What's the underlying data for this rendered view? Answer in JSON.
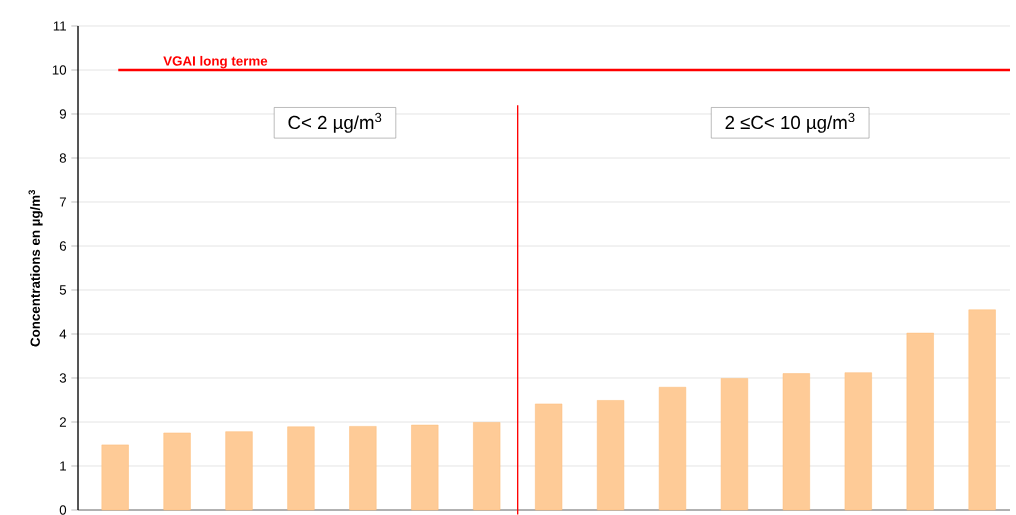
{
  "chart_data": {
    "type": "bar",
    "ylabel": "Concentrations en µg/m$^{3}$",
    "categories": [
      null,
      null,
      null,
      null,
      null,
      null,
      null,
      null,
      null,
      null,
      null,
      null,
      null,
      null,
      null
    ],
    "values": [
      1.48,
      1.75,
      1.78,
      1.89,
      1.9,
      1.93,
      1.99,
      2.41,
      2.49,
      2.79,
      2.99,
      3.1,
      3.12,
      4.02,
      4.55
    ],
    "color": "#fecb97",
    "ylim": [
      0,
      11
    ],
    "yticks": [
      0,
      1,
      2,
      3,
      4,
      5,
      6,
      7,
      8,
      9,
      10,
      11
    ],
    "grid": "y",
    "ref_lines": [
      {
        "axis": "y",
        "value": 10,
        "label": "VGAI long terme",
        "color": "#ff0000"
      }
    ],
    "annotations": [
      "C< 2 µg/m$^{3}$",
      "2 ≤C< 10 µg/m$^{3}$"
    ]
  }
}
